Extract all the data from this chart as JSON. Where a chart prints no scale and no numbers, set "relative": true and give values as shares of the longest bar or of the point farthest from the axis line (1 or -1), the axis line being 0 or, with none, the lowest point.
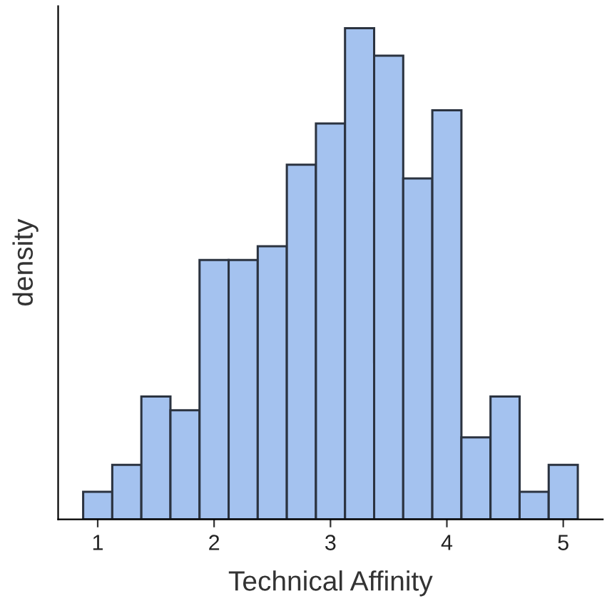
{
  "chart_data": {
    "type": "bar",
    "xlabel": "Technical Affinity",
    "ylabel": "density",
    "relative": true,
    "x": [
      1,
      1.25,
      1.5,
      1.75,
      2,
      2.25,
      2.5,
      2.75,
      3,
      3.25,
      3.5,
      3.75,
      4,
      4.25,
      4.5,
      4.75,
      5
    ],
    "values": [
      0.056,
      0.111,
      0.25,
      0.222,
      0.528,
      0.528,
      0.556,
      0.722,
      0.806,
      1,
      0.944,
      0.694,
      0.833,
      0.167,
      0.25,
      0.056,
      0.111
    ],
    "color": "#a4c2ef",
    "xlim": [
      0.66,
      5.34
    ],
    "xticks": [
      1,
      2,
      3,
      4,
      5
    ]
  }
}
